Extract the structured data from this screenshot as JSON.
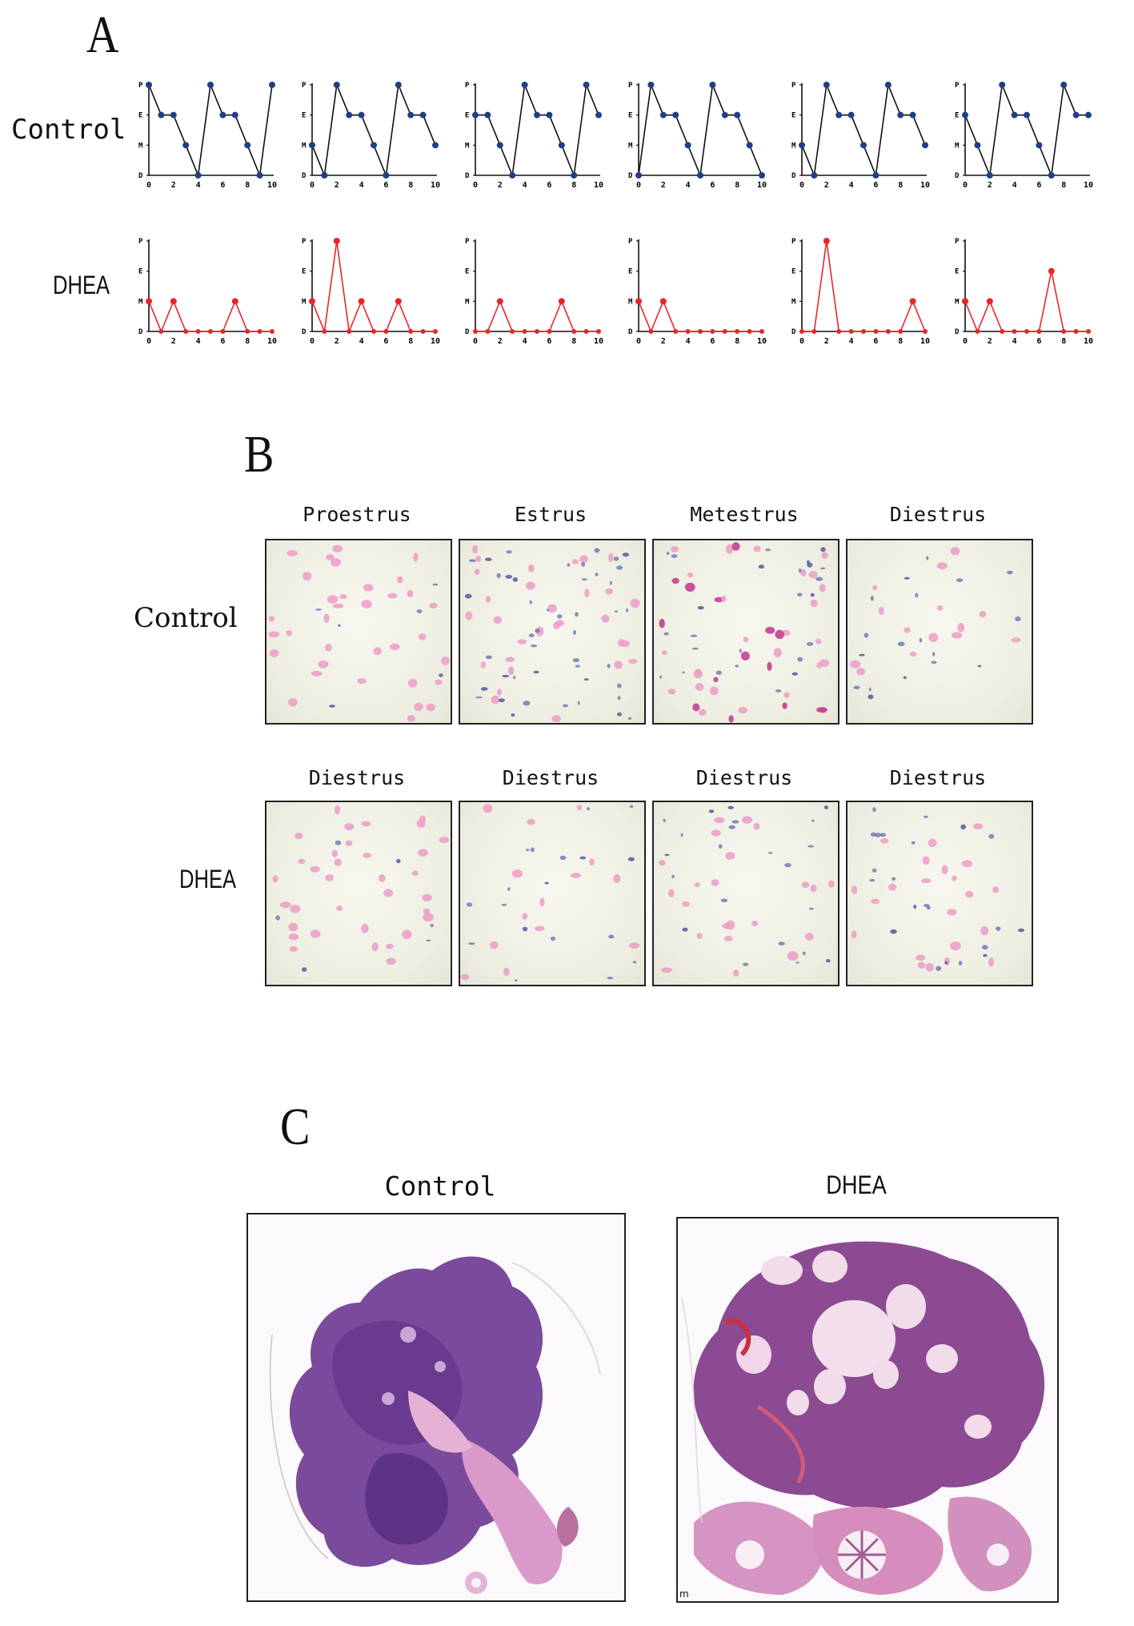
{
  "panels": {
    "a": {
      "letter": "A",
      "row_labels": [
        "Control",
        "DHEA"
      ],
      "y_ticks": [
        "D",
        "M",
        "E",
        "P"
      ],
      "x_ticks": [
        "0",
        "2",
        "4",
        "6",
        "8",
        "10"
      ],
      "colors": {
        "control": "#1f3f86",
        "dhea": "#e8262a"
      }
    },
    "b": {
      "letter": "B",
      "row_labels": [
        "Control",
        "DHEA"
      ],
      "control_titles": [
        "Proestrus",
        "Estrus",
        "Metestrus",
        "Diestrus"
      ],
      "dhea_titles": [
        "Diestrus",
        "Diestrus",
        "Diestrus",
        "Diestrus"
      ]
    },
    "c": {
      "letter": "C",
      "titles": [
        "Control",
        "DHEA"
      ],
      "corner_mark": "m"
    }
  },
  "chart_data": [
    {
      "type": "line",
      "group": "Control",
      "x": [
        0,
        1,
        2,
        3,
        4,
        5,
        6,
        7,
        8,
        9,
        10
      ],
      "y": [
        3,
        2,
        2,
        1,
        0,
        3,
        2,
        2,
        1,
        0,
        3
      ]
    },
    {
      "type": "line",
      "group": "Control",
      "x": [
        0,
        1,
        2,
        3,
        4,
        5,
        6,
        7,
        8,
        9,
        10
      ],
      "y": [
        1,
        0,
        3,
        2,
        2,
        1,
        0,
        3,
        2,
        2,
        1
      ]
    },
    {
      "type": "line",
      "group": "Control",
      "x": [
        0,
        1,
        2,
        3,
        4,
        5,
        6,
        7,
        8,
        9,
        10
      ],
      "y": [
        2,
        2,
        1,
        0,
        3,
        2,
        2,
        1,
        0,
        3,
        2
      ]
    },
    {
      "type": "line",
      "group": "Control",
      "x": [
        0,
        1,
        2,
        3,
        4,
        5,
        6,
        7,
        8,
        9,
        10
      ],
      "y": [
        0,
        3,
        2,
        2,
        1,
        0,
        3,
        2,
        2,
        1,
        0
      ]
    },
    {
      "type": "line",
      "group": "Control",
      "x": [
        0,
        1,
        2,
        3,
        4,
        5,
        6,
        7,
        8,
        9,
        10
      ],
      "y": [
        1,
        0,
        3,
        2,
        2,
        1,
        0,
        3,
        2,
        2,
        1
      ]
    },
    {
      "type": "line",
      "group": "Control",
      "x": [
        0,
        1,
        2,
        3,
        4,
        5,
        6,
        7,
        8,
        9,
        10
      ],
      "y": [
        2,
        1,
        0,
        3,
        2,
        2,
        1,
        0,
        3,
        2,
        2
      ]
    },
    {
      "type": "line",
      "group": "DHEA",
      "x": [
        0,
        1,
        2,
        3,
        4,
        5,
        6,
        7,
        8,
        9,
        10
      ],
      "y": [
        1,
        0,
        1,
        0,
        0,
        0,
        0,
        1,
        0,
        0,
        0
      ]
    },
    {
      "type": "line",
      "group": "DHEA",
      "x": [
        0,
        1,
        2,
        3,
        4,
        5,
        6,
        7,
        8,
        9,
        10
      ],
      "y": [
        1,
        0,
        3,
        0,
        1,
        0,
        0,
        1,
        0,
        0,
        0
      ]
    },
    {
      "type": "line",
      "group": "DHEA",
      "x": [
        0,
        1,
        2,
        3,
        4,
        5,
        6,
        7,
        8,
        9,
        10
      ],
      "y": [
        0,
        0,
        1,
        0,
        0,
        0,
        0,
        1,
        0,
        0,
        0
      ]
    },
    {
      "type": "line",
      "group": "DHEA",
      "x": [
        0,
        1,
        2,
        3,
        4,
        5,
        6,
        7,
        8,
        9,
        10
      ],
      "y": [
        1,
        0,
        1,
        0,
        0,
        0,
        0,
        0,
        0,
        0,
        0
      ]
    },
    {
      "type": "line",
      "group": "DHEA",
      "x": [
        0,
        1,
        2,
        3,
        4,
        5,
        6,
        7,
        8,
        9,
        10
      ],
      "y": [
        0,
        0,
        3,
        0,
        0,
        0,
        0,
        0,
        0,
        1,
        0
      ]
    },
    {
      "type": "line",
      "group": "DHEA",
      "x": [
        0,
        1,
        2,
        3,
        4,
        5,
        6,
        7,
        8,
        9,
        10
      ],
      "y": [
        1,
        0,
        1,
        0,
        0,
        0,
        0,
        2,
        0,
        0,
        0
      ]
    }
  ]
}
